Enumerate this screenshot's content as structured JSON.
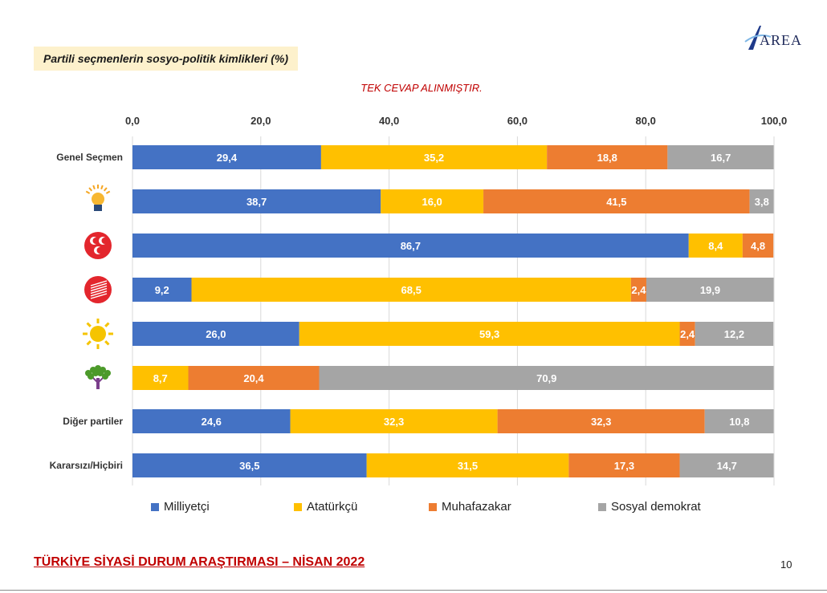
{
  "header": {
    "title": "Partili seçmenlerin sosyo-politik kimlikleri (%)",
    "subtitle": "TEK CEVAP ALINMIŞTIR.",
    "logo_text": "AREA"
  },
  "footer": {
    "title": "TÜRKİYE SİYASİ DURUM ARAŞTIRMASI – NİSAN 2022",
    "page_number": "10"
  },
  "colors": {
    "Milliyetçi": "#4472c4",
    "Atatürkçü": "#ffc000",
    "Muhafazakar": "#ed7d31",
    "Sosyal demokrat": "#a5a5a5"
  },
  "chart_data": {
    "type": "bar",
    "orientation": "horizontal",
    "stacked": true,
    "title": "Partili seçmenlerin sosyo-politik kimlikleri (%)",
    "xlim": [
      0,
      100
    ],
    "xticks": [
      "0,0",
      "20,0",
      "40,0",
      "60,0",
      "80,0",
      "100,0"
    ],
    "grid": true,
    "legend_position": "bottom",
    "categories": [
      {
        "label": "Genel Seçmen",
        "icon": null
      },
      {
        "label": "",
        "icon": "ak-parti-bulb-icon"
      },
      {
        "label": "",
        "icon": "mhp-crescents-icon"
      },
      {
        "label": "",
        "icon": "chp-arrows-icon"
      },
      {
        "label": "",
        "icon": "iyi-parti-sun-icon"
      },
      {
        "label": "",
        "icon": "hdp-tree-icon"
      },
      {
        "label": "Diğer partiler",
        "icon": null
      },
      {
        "label": "Kararsızı/Hiçbiri",
        "icon": null
      }
    ],
    "series": [
      {
        "name": "Milliyetçi",
        "values": [
          29.4,
          38.7,
          86.7,
          9.2,
          26.0,
          null,
          24.6,
          36.5
        ],
        "labels": [
          "29,4",
          "38,7",
          "86,7",
          "9,2",
          "26,0",
          "",
          "24,6",
          "36,5"
        ]
      },
      {
        "name": "Atatürkçü",
        "values": [
          35.2,
          16.0,
          8.4,
          68.5,
          59.3,
          8.7,
          32.3,
          31.5
        ],
        "labels": [
          "35,2",
          "16,0",
          "8,4",
          "68,5",
          "59,3",
          "8,7",
          "32,3",
          "31,5"
        ]
      },
      {
        "name": "Muhafazakar",
        "values": [
          18.8,
          41.5,
          4.8,
          2.4,
          2.4,
          20.4,
          32.3,
          17.3
        ],
        "labels": [
          "18,8",
          "41,5",
          "4,8",
          "2,4",
          "2,4",
          "20,4",
          "32,3",
          "17,3"
        ]
      },
      {
        "name": "Sosyal demokrat",
        "values": [
          16.7,
          3.8,
          null,
          19.9,
          12.2,
          70.9,
          10.8,
          14.7
        ],
        "labels": [
          "16,7",
          "3,8",
          "",
          "19,9",
          "12,2",
          "70,9",
          "10,8",
          "14,7"
        ]
      }
    ]
  }
}
